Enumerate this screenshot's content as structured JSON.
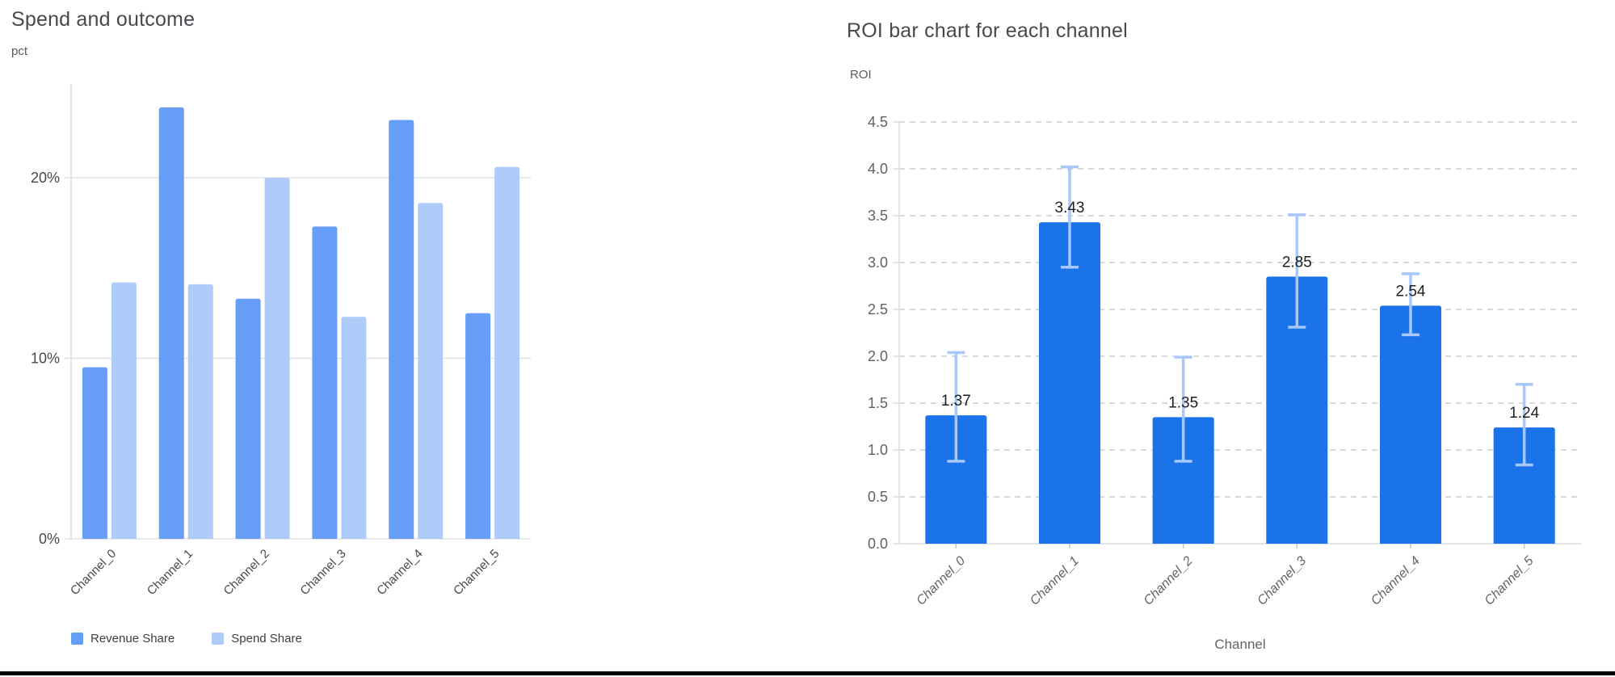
{
  "page": {
    "background": "#ffffff",
    "divider_color": "#000000"
  },
  "chart_data": [
    {
      "type": "bar",
      "title": "Spend and outcome",
      "ylabel": "pct",
      "xlabel": "",
      "categories": [
        "Channel_0",
        "Channel_1",
        "Channel_2",
        "Channel_3",
        "Channel_4",
        "Channel_5"
      ],
      "series": [
        {
          "name": "Revenue Share",
          "color": "#669df6",
          "values": [
            9.5,
            23.9,
            13.3,
            17.3,
            23.2,
            12.5
          ]
        },
        {
          "name": "Spend Share",
          "color": "#aecbfa",
          "values": [
            14.2,
            14.1,
            20.0,
            12.3,
            18.6,
            20.6
          ]
        }
      ],
      "ylim": [
        0,
        25.2
      ],
      "yticks": [
        {
          "value": 0,
          "label": "0%"
        },
        {
          "value": 10,
          "label": "10%"
        },
        {
          "value": 20,
          "label": "20%"
        }
      ],
      "grid": "solid",
      "grid_color": "#e1e3e5",
      "axis_color": "#dadce0",
      "tick_color": "#45484c",
      "legend_position": "bottom"
    },
    {
      "type": "bar",
      "title": "ROI bar chart for each channel",
      "ylabel": "ROI",
      "xlabel": "Channel",
      "categories": [
        "Channel_0",
        "Channel_1",
        "Channel_2",
        "Channel_3",
        "Channel_4",
        "Channel_5"
      ],
      "values": [
        1.37,
        3.43,
        1.35,
        2.85,
        2.54,
        1.24
      ],
      "value_labels": [
        "1.37",
        "3.43",
        "1.35",
        "2.85",
        "2.54",
        "1.24"
      ],
      "error_low": [
        0.88,
        2.95,
        0.88,
        2.31,
        2.23,
        0.84
      ],
      "error_high": [
        2.04,
        4.02,
        1.99,
        3.51,
        2.88,
        1.7
      ],
      "bar_color": "#1a73e8",
      "error_color": "#a8c7fa",
      "label_color": "#1f1f1f",
      "ylim": [
        0,
        4.5
      ],
      "yticks": [
        {
          "value": 0.0,
          "label": "0.0"
        },
        {
          "value": 0.5,
          "label": "0.5"
        },
        {
          "value": 1.0,
          "label": "1.0"
        },
        {
          "value": 1.5,
          "label": "1.5"
        },
        {
          "value": 2.0,
          "label": "2.0"
        },
        {
          "value": 2.5,
          "label": "2.5"
        },
        {
          "value": 3.0,
          "label": "3.0"
        },
        {
          "value": 3.5,
          "label": "3.5"
        },
        {
          "value": 4.0,
          "label": "4.0"
        },
        {
          "value": 4.5,
          "label": "4.5"
        }
      ],
      "grid": "dashed",
      "grid_color": "#c9cdd1",
      "axis_color": "#dadce0",
      "tick_color": "#5f6368",
      "legend_position": "none"
    }
  ]
}
